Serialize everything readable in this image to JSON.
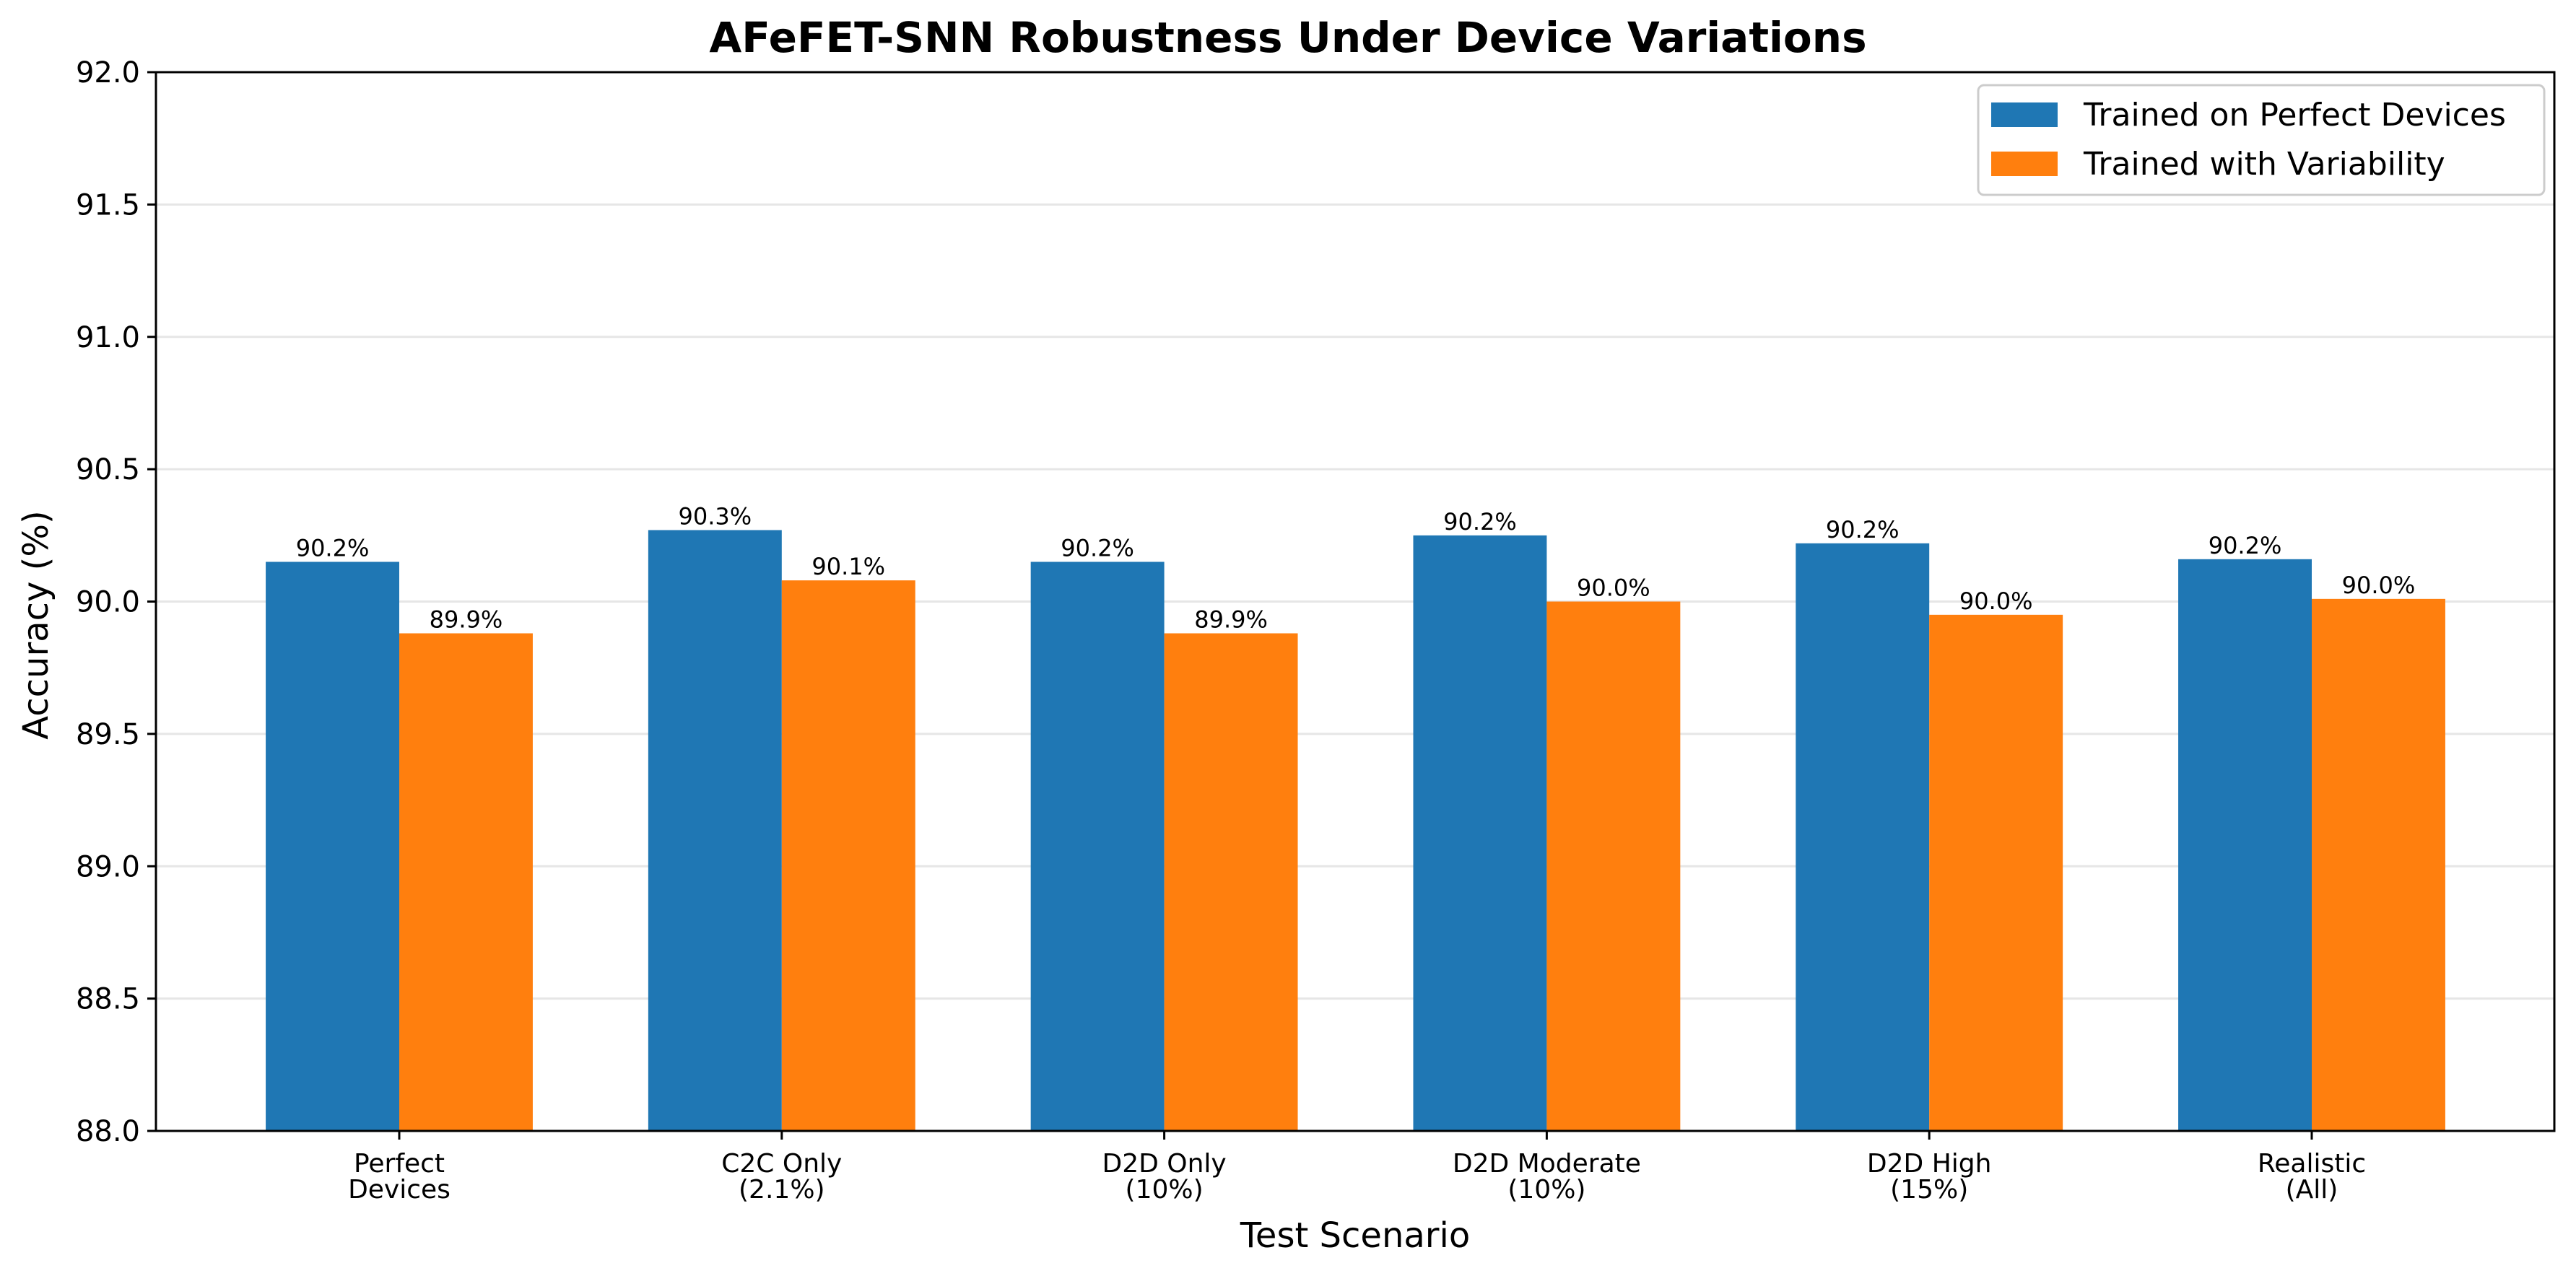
{
  "chart_data": {
    "type": "bar",
    "title": "AFeFET-SNN Robustness Under Device Variations",
    "xlabel": "Test Scenario",
    "ylabel": "Accuracy (%)",
    "ylim": [
      88.0,
      92.0
    ],
    "yticks": [
      "88.0",
      "88.5",
      "89.0",
      "89.5",
      "90.0",
      "90.5",
      "91.0",
      "91.5",
      "92.0"
    ],
    "grid": true,
    "legend_position": "top-right",
    "categories": [
      [
        "Perfect",
        "Devices"
      ],
      [
        "C2C Only",
        "(2.1%)"
      ],
      [
        "D2D Only",
        "(10%)"
      ],
      [
        "D2D Moderate",
        "(10%)"
      ],
      [
        "D2D High",
        "(15%)"
      ],
      [
        "Realistic",
        "(All)"
      ]
    ],
    "series": [
      {
        "name": "Trained on Perfect Devices",
        "color": "#1f77b4",
        "values": [
          90.15,
          90.27,
          90.15,
          90.25,
          90.22,
          90.16
        ],
        "labels": [
          "90.2%",
          "90.3%",
          "90.2%",
          "90.2%",
          "90.2%",
          "90.2%"
        ]
      },
      {
        "name": "Trained with Variability",
        "color": "#ff7f0e",
        "values": [
          89.88,
          90.08,
          89.88,
          90.0,
          89.95,
          90.01
        ],
        "labels": [
          "89.9%",
          "90.1%",
          "89.9%",
          "90.0%",
          "90.0%",
          "90.0%"
        ]
      }
    ]
  }
}
